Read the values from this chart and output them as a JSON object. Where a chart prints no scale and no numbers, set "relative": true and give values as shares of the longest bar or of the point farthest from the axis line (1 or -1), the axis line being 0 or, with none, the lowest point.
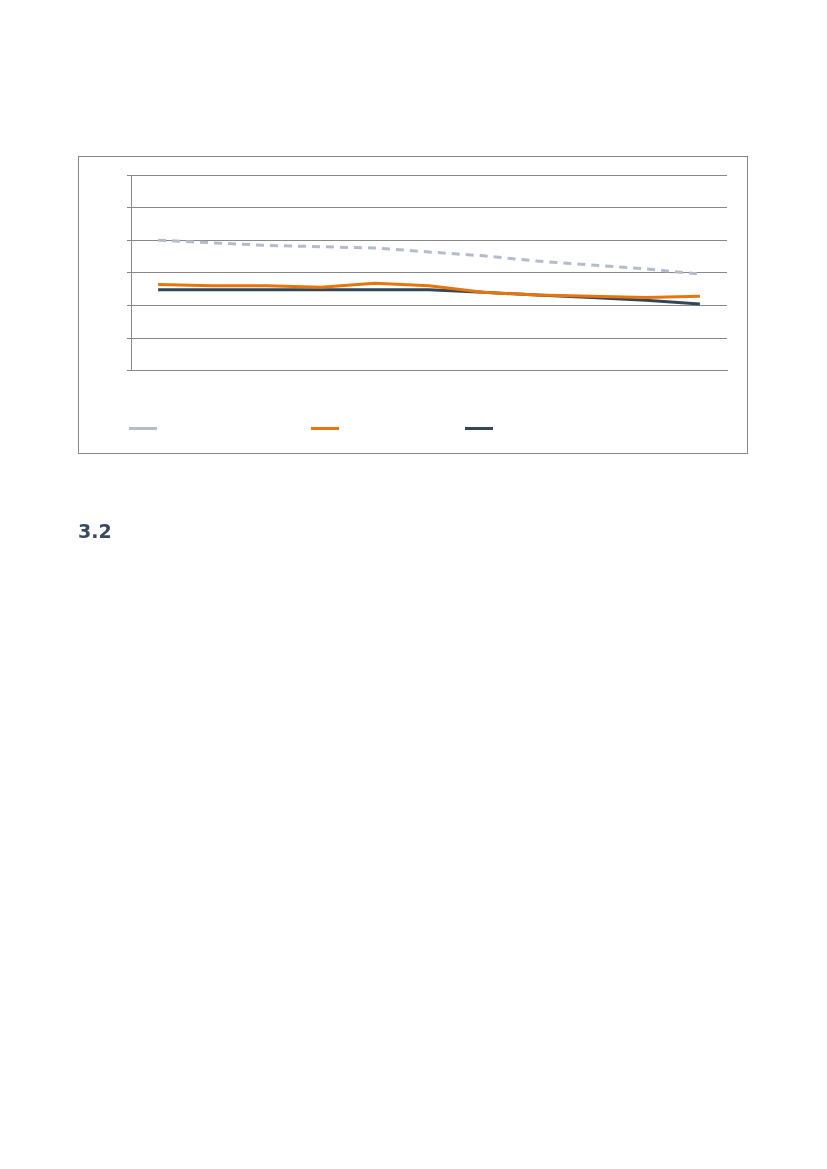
{
  "chart_data": {
    "type": "line",
    "relative": true,
    "categories": [
      null,
      null,
      null,
      null,
      null,
      null,
      null,
      null,
      null,
      null,
      null
    ],
    "series": [
      {
        "color": "#b4bccc",
        "line_style": "dashed",
        "values": [
          1.0,
          0.98,
          0.96,
          0.95,
          0.94,
          0.91,
          0.88,
          0.84,
          0.81,
          0.78,
          0.74
        ]
      },
      {
        "color": "#e8740c",
        "values": [
          0.66,
          0.65,
          0.65,
          0.64,
          0.67,
          0.65,
          0.6,
          0.58,
          0.57,
          0.56,
          0.57
        ]
      },
      {
        "color": "#33475b",
        "values": [
          0.62,
          0.62,
          0.62,
          0.62,
          0.62,
          0.62,
          0.6,
          0.58,
          0.56,
          0.54,
          0.51
        ]
      }
    ],
    "grid": "y",
    "marker": "none",
    "annotations": [
      "3.2"
    ]
  }
}
